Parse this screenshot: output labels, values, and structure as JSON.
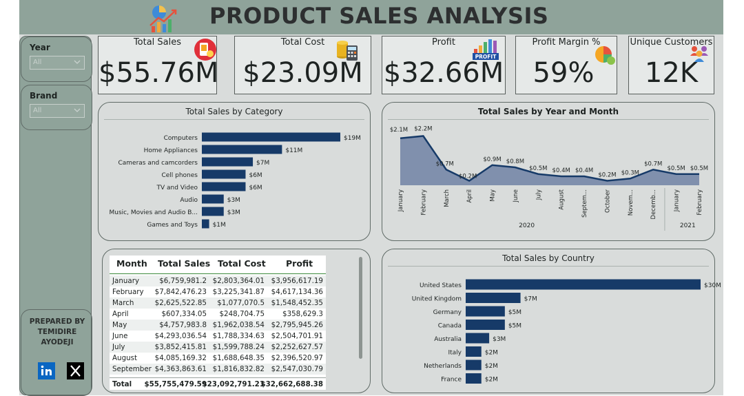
{
  "header": {
    "title": "PRODUCT SALES ANALYSIS"
  },
  "sidebar": {
    "year": {
      "label": "Year",
      "value": "All"
    },
    "brand": {
      "label": "Brand",
      "value": "All"
    },
    "prepared_by": [
      "PREPARED BY",
      "TEMIDIRE",
      "AYODEJI"
    ],
    "social": [
      "linkedin-icon",
      "x-icon"
    ]
  },
  "kpis": {
    "total_sales": {
      "title": "Total Sales",
      "value": "$55.76M"
    },
    "total_cost": {
      "title": "Total Cost",
      "value": "$23.09M"
    },
    "profit": {
      "title": "Profit",
      "value": "$32.66M",
      "icon_text": "PROFIT"
    },
    "profit_margin": {
      "title": "Profit Margin %",
      "value": "59%"
    },
    "unique_customers": {
      "title": "Unique Customers",
      "value": "12K"
    }
  },
  "colors": {
    "bar": "#163a68",
    "area": "#8090ad",
    "line": "#163a68",
    "panel": "#d9dcdb",
    "side": "#8fa39a"
  },
  "table": {
    "headers": [
      "Month",
      "Total Sales",
      "Total Cost",
      "Profit"
    ],
    "rows": [
      [
        "January",
        "$6,759,981.2",
        "$2,803,364.01",
        "$3,956,617.19"
      ],
      [
        "February",
        "$7,842,476.23",
        "$3,225,341.87",
        "$4,617,134.36"
      ],
      [
        "March",
        "$2,625,522.85",
        "$1,077,070.5",
        "$1,548,452.35"
      ],
      [
        "April",
        "$607,334.05",
        "$248,704.75",
        "$358,629.3"
      ],
      [
        "May",
        "$4,757,983.8",
        "$1,962,038.54",
        "$2,795,945.26"
      ],
      [
        "June",
        "$4,293,036.54",
        "$1,788,334.63",
        "$2,504,701.91"
      ],
      [
        "July",
        "$3,852,415.81",
        "$1,599,788.24",
        "$2,252,627.57"
      ],
      [
        "August",
        "$4,085,169.32",
        "$1,688,648.35",
        "$2,396,520.97"
      ],
      [
        "September",
        "$4,363,863.61",
        "$1,816,832.82",
        "$2,547,030.79"
      ]
    ],
    "total": [
      "Total",
      "$55,755,479.59",
      "$23,092,791.21",
      "$32,662,688.38"
    ]
  },
  "chart_data": [
    {
      "type": "bar",
      "orientation": "horizontal",
      "title": "Total Sales by Category",
      "categories": [
        "Computers",
        "Home Appliances",
        "Cameras and camcorders",
        "Cell phones",
        "TV and Video",
        "Audio",
        "Music, Movies and Audio B...",
        "Games and Toys"
      ],
      "values": [
        19,
        11,
        7,
        6,
        6,
        3,
        3,
        1
      ],
      "labels": [
        "$19M",
        "$11M",
        "$7M",
        "$6M",
        "$6M",
        "$3M",
        "$3M",
        "$1M"
      ],
      "unit": "M"
    },
    {
      "type": "area",
      "title": "Total Sales by Year and Month",
      "x": [
        "January",
        "February",
        "March",
        "April",
        "May",
        "June",
        "July",
        "August",
        "Septem...",
        "October",
        "Novem...",
        "Decemb...",
        "January",
        "February"
      ],
      "years": [
        {
          "label": "2020",
          "span": [
            0,
            11
          ]
        },
        {
          "label": "2021",
          "span": [
            12,
            13
          ]
        }
      ],
      "values": [
        2.1,
        2.2,
        0.7,
        0.2,
        0.9,
        0.8,
        0.5,
        0.4,
        0.4,
        0.2,
        0.3,
        0.7,
        0.5,
        0.5
      ],
      "labels": [
        "$2.1M",
        "$2.2M",
        "$0.7M",
        "$0.2M",
        "$0.9M",
        "$0.8M",
        "$0.5M",
        "$0.4M",
        "$0.4M",
        "$0.2M",
        "$0.3M",
        "$0.7M",
        "$0.5M",
        "$0.5M"
      ],
      "ylim": [
        0,
        2.4
      ]
    },
    {
      "type": "bar",
      "orientation": "horizontal",
      "title": "Total Sales by Country",
      "categories": [
        "United States",
        "United Kingdom",
        "Germany",
        "Canada",
        "Australia",
        "Italy",
        "Netherlands",
        "France"
      ],
      "values": [
        30,
        7,
        5,
        5,
        3,
        2,
        2,
        2
      ],
      "labels": [
        "$30M",
        "$7M",
        "$5M",
        "$5M",
        "$3M",
        "$2M",
        "$2M",
        "$2M"
      ],
      "unit": "M"
    }
  ]
}
